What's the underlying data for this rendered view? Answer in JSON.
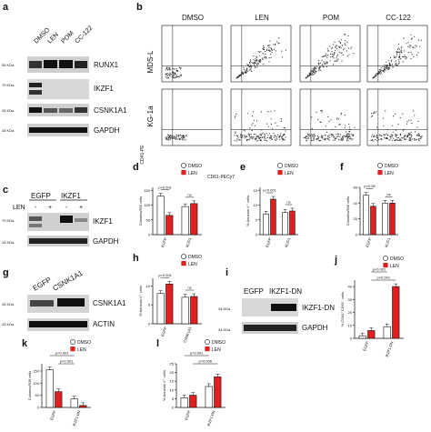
{
  "panels": {
    "a": {
      "letter": "a",
      "lanes": [
        "DMSO",
        "LEN",
        "POM",
        "CC-122"
      ],
      "kda": [
        "55 KDa",
        "70 KDa",
        "34 KDa",
        "34 KDa"
      ],
      "proteins": [
        "RUNX1",
        "IKZF1",
        "CSNK1A1",
        "GAPDH"
      ]
    },
    "b": {
      "letter": "b",
      "conditions": [
        "DMSO",
        "LEN",
        "POM",
        "CC-122"
      ],
      "rows": [
        "MDS-L",
        "KG-1a"
      ],
      "y_axis": "CD41-PE",
      "x_axis": "CD61-PECy7"
    },
    "c": {
      "letter": "c",
      "groups": [
        "EGFP",
        "IKZF1"
      ],
      "treat_label": "LEN",
      "treat": [
        "-",
        "+",
        "-",
        "+"
      ],
      "kda": [
        "70 KDa",
        "34 KDa"
      ],
      "proteins": [
        "IKZF1",
        "GAPDH"
      ]
    },
    "g": {
      "letter": "g",
      "lanes": [
        "EGFP",
        "CSNK1A1"
      ],
      "kda": [
        "34 KDa",
        "43 KDa"
      ],
      "proteins": [
        "CSNK1A1",
        "ACTIN"
      ]
    },
    "i": {
      "letter": "i",
      "lanes": [
        "EGFP",
        "IKZF1-DN"
      ],
      "kda": [
        "34 KDa",
        "34 KDa"
      ],
      "proteins": [
        "IKZF1-DN",
        "GAPDH"
      ]
    }
  },
  "legend": {
    "dmso": "DMSO",
    "len": "LEN"
  },
  "colors": {
    "dmso": "#ffffff",
    "len": "#e02020",
    "axis": "#111111"
  },
  "chart_data": [
    {
      "letter": "d",
      "type": "bar",
      "ylabel": "Colonies/500 cells",
      "ylim": [
        0,
        160
      ],
      "yticks": [
        "0",
        "50",
        "100",
        "150"
      ],
      "categories": [
        "EGFP",
        "IKZF1"
      ],
      "series": [
        {
          "name": "DMSO",
          "values": [
            130,
            95
          ]
        },
        {
          "name": "LEN",
          "values": [
            65,
            105
          ]
        }
      ],
      "annotations": [
        {
          "text": "p<0.001",
          "cat": 0
        },
        {
          "text": "ns",
          "cat": 1
        }
      ]
    },
    {
      "letter": "e",
      "type": "bar",
      "ylabel": "% Annexin V⁺ cells",
      "ylim": [
        0,
        16
      ],
      "yticks": [
        "0",
        "5",
        "10",
        "15"
      ],
      "categories": [
        "EGFP",
        "IKZF1"
      ],
      "series": [
        {
          "name": "DMSO",
          "values": [
            7,
            7.5
          ]
        },
        {
          "name": "LEN",
          "values": [
            12,
            8
          ]
        }
      ],
      "annotations": [
        {
          "text": "p<0.001",
          "cat": 0
        },
        {
          "text": "ns",
          "cat": 1
        }
      ]
    },
    {
      "letter": "f",
      "type": "bar",
      "ylabel": "Colonies/500 cells",
      "ylim": [
        0,
        60
      ],
      "yticks": [
        "0",
        "20",
        "40",
        "60"
      ],
      "categories": [
        "EGFP",
        "IKZF1"
      ],
      "series": [
        {
          "name": "DMSO",
          "values": [
            50,
            40
          ]
        },
        {
          "name": "LEN",
          "values": [
            36,
            40
          ]
        }
      ],
      "annotations": [
        {
          "text": "p<0.05",
          "cat": 0
        },
        {
          "text": "ns",
          "cat": 1
        }
      ]
    },
    {
      "letter": "h",
      "type": "bar",
      "ylabel": "% Annexin V⁺ cells",
      "ylim": [
        0,
        12
      ],
      "yticks": [
        "0",
        "5",
        "10"
      ],
      "categories": [
        "EGFP",
        "CSNK1A1"
      ],
      "series": [
        {
          "name": "DMSO",
          "values": [
            8,
            7
          ]
        },
        {
          "name": "LEN",
          "values": [
            10.5,
            7.2
          ]
        }
      ],
      "annotations": [
        {
          "text": "p<0.001",
          "cat": 0
        },
        {
          "text": "ns",
          "cat": 1
        }
      ]
    },
    {
      "letter": "j",
      "type": "bar",
      "ylabel": "% CD41⁺CD61⁺ cells",
      "ylim": [
        0,
        45
      ],
      "yticks": [
        "0",
        "10",
        "20",
        "30",
        "40"
      ],
      "categories": [
        "EGFP",
        "IKZF1-DN"
      ],
      "series": [
        {
          "name": "DMSO",
          "values": [
            2,
            9
          ]
        },
        {
          "name": "LEN",
          "values": [
            6,
            40
          ]
        }
      ],
      "annotations": [
        {
          "text": "p<0.001",
          "from": [
            0,
            1
          ],
          "to": [
            1,
            0
          ]
        },
        {
          "text": "p<0.001",
          "from": [
            0,
            1
          ],
          "to": [
            1,
            1
          ]
        }
      ]
    },
    {
      "letter": "k",
      "type": "bar",
      "ylabel": "Colonies/500 cells",
      "ylim": [
        0,
        180
      ],
      "yticks": [
        "0",
        "50",
        "100",
        "150"
      ],
      "categories": [
        "EGFP",
        "IKZF1-DN"
      ],
      "series": [
        {
          "name": "DMSO",
          "values": [
            155,
            35
          ]
        },
        {
          "name": "LEN",
          "values": [
            65,
            8
          ]
        }
      ],
      "annotations": [
        {
          "text": "p<0.001",
          "from": [
            0,
            0
          ],
          "to": [
            1,
            0
          ]
        },
        {
          "text": "p<0.001",
          "from": [
            0,
            1
          ],
          "to": [
            1,
            0
          ]
        }
      ]
    },
    {
      "letter": "l",
      "type": "bar",
      "ylabel": "% Annexin V⁺ cells",
      "ylim": [
        0,
        25
      ],
      "yticks": [
        "0",
        "5",
        "10",
        "15",
        "20",
        "25"
      ],
      "categories": [
        "EGFP",
        "IKZF1-DN"
      ],
      "series": [
        {
          "name": "DMSO",
          "values": [
            5.5,
            12
          ]
        },
        {
          "name": "LEN",
          "values": [
            7,
            17.5
          ]
        }
      ],
      "annotations": [
        {
          "text": "p<0.001",
          "from": [
            0,
            0
          ],
          "to": [
            1,
            0
          ]
        },
        {
          "text": "p=0.006",
          "from": [
            0,
            1
          ],
          "to": [
            1,
            1
          ]
        }
      ]
    }
  ]
}
